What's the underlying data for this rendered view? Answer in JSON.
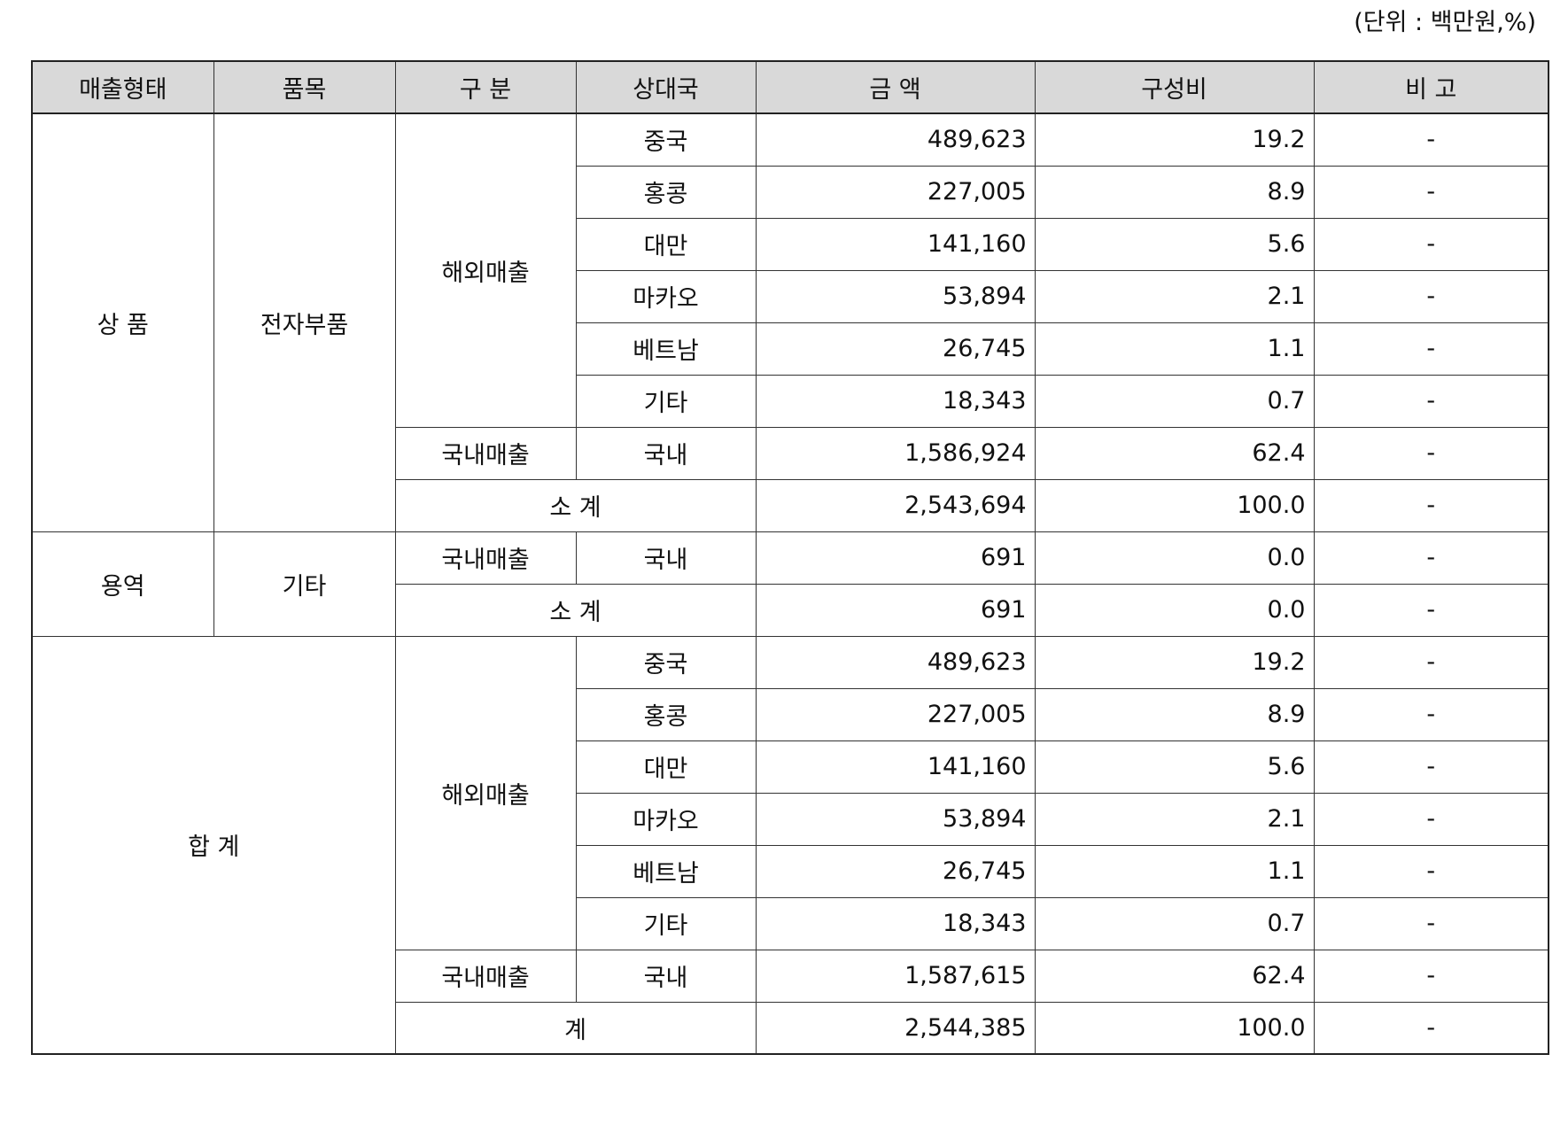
{
  "unit_note": "(단위 : 백만원,%)",
  "headers": [
    "매출형태",
    "품목",
    "구 분",
    "상대국",
    "금 액",
    "구성비",
    "비 고"
  ],
  "groups": {
    "product": {
      "type": "상 품",
      "item": "전자부품",
      "overseas_label": "해외매출",
      "domestic_label": "국내매출",
      "subtotal_label": "소 계",
      "overseas_rows": [
        {
          "country": "중국",
          "amount": "489,623",
          "ratio": "19.2",
          "note": "-"
        },
        {
          "country": "홍콩",
          "amount": "227,005",
          "ratio": "8.9",
          "note": "-"
        },
        {
          "country": "대만",
          "amount": "141,160",
          "ratio": "5.6",
          "note": "-"
        },
        {
          "country": "마카오",
          "amount": "53,894",
          "ratio": "2.1",
          "note": "-"
        },
        {
          "country": "베트남",
          "amount": "26,745",
          "ratio": "1.1",
          "note": "-"
        },
        {
          "country": "기타",
          "amount": "18,343",
          "ratio": "0.7",
          "note": "-"
        }
      ],
      "domestic_row": {
        "country": "국내",
        "amount": "1,586,924",
        "ratio": "62.4",
        "note": "-"
      },
      "subtotal_row": {
        "amount": "2,543,694",
        "ratio": "100.0",
        "note": "-"
      }
    },
    "service": {
      "type": "용역",
      "item": "기타",
      "domestic_label": "국내매출",
      "subtotal_label": "소 계",
      "domestic_row": {
        "country": "국내",
        "amount": "691",
        "ratio": "0.0",
        "note": "-"
      },
      "subtotal_row": {
        "amount": "691",
        "ratio": "0.0",
        "note": "-"
      }
    },
    "total": {
      "type": "합 계",
      "overseas_label": "해외매출",
      "domestic_label": "국내매출",
      "total_label": "계",
      "overseas_rows": [
        {
          "country": "중국",
          "amount": "489,623",
          "ratio": "19.2",
          "note": "-"
        },
        {
          "country": "홍콩",
          "amount": "227,005",
          "ratio": "8.9",
          "note": "-"
        },
        {
          "country": "대만",
          "amount": "141,160",
          "ratio": "5.6",
          "note": "-"
        },
        {
          "country": "마카오",
          "amount": "53,894",
          "ratio": "2.1",
          "note": "-"
        },
        {
          "country": "베트남",
          "amount": "26,745",
          "ratio": "1.1",
          "note": "-"
        },
        {
          "country": "기타",
          "amount": "18,343",
          "ratio": "0.7",
          "note": "-"
        }
      ],
      "domestic_row": {
        "country": "국내",
        "amount": "1,587,615",
        "ratio": "62.4",
        "note": "-"
      },
      "total_row": {
        "amount": "2,544,385",
        "ratio": "100.0",
        "note": "-"
      }
    }
  }
}
